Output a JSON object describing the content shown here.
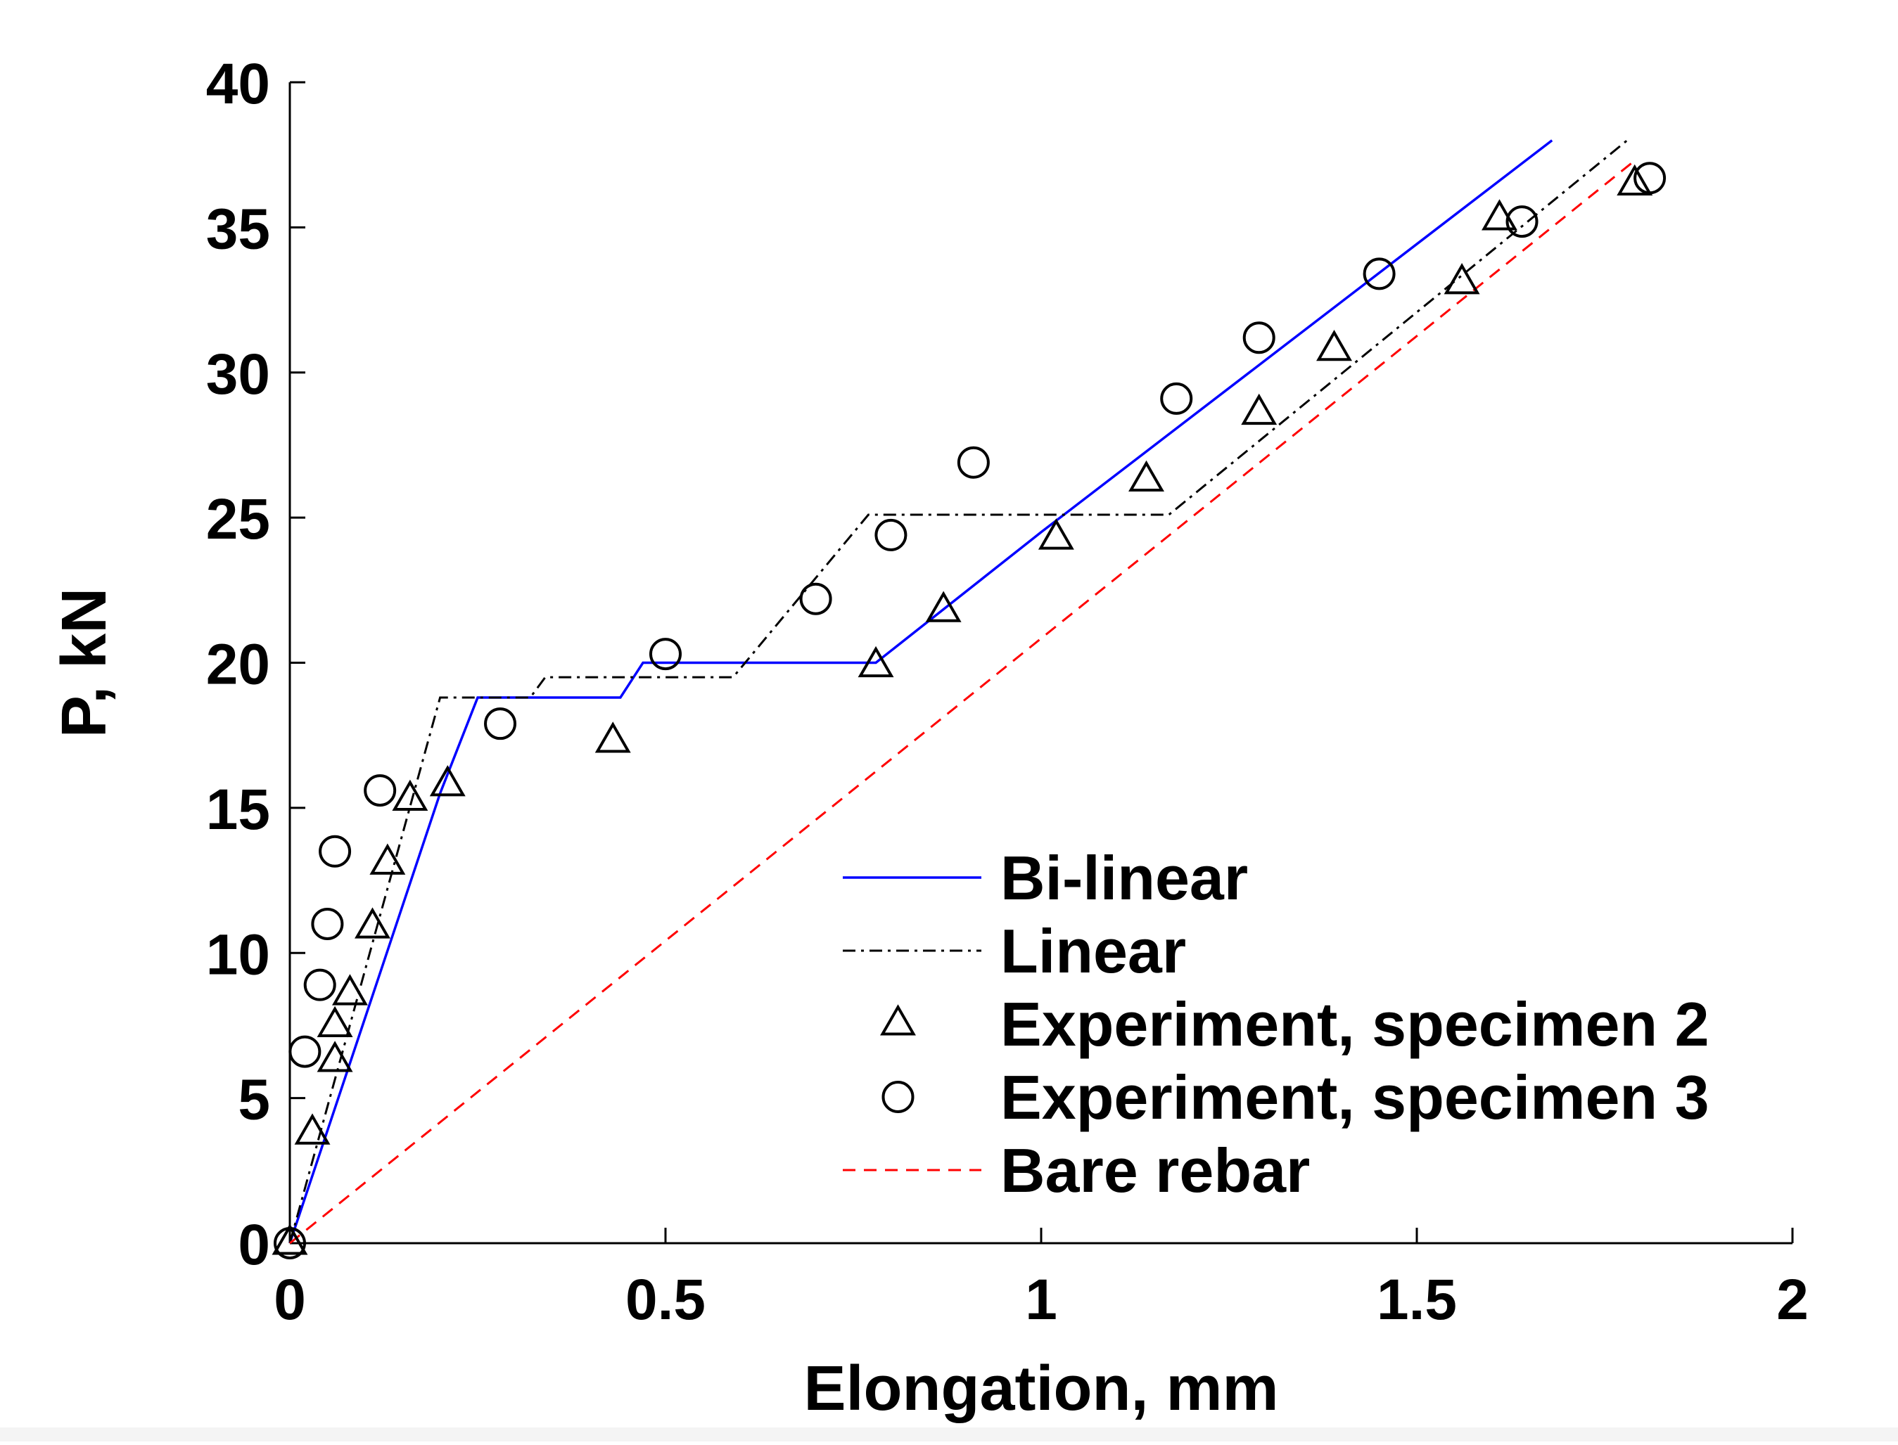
{
  "chart_data": {
    "type": "line",
    "title": "",
    "xlabel": "Elongation, mm",
    "ylabel": "P, kN",
    "xlim": [
      0,
      2
    ],
    "ylim": [
      0,
      40
    ],
    "xticks": [
      0,
      0.5,
      1,
      1.5,
      2
    ],
    "xtick_labels": [
      "0",
      "0.5",
      "1",
      "1.5",
      "2"
    ],
    "yticks": [
      0,
      5,
      10,
      15,
      20,
      25,
      30,
      35,
      40
    ],
    "ytick_labels": [
      "0",
      "5",
      "10",
      "15",
      "20",
      "25",
      "30",
      "35",
      "40"
    ],
    "grid": false,
    "legend_position": "bottom-right",
    "series": [
      {
        "name": "Bi-linear",
        "style": "solid",
        "color": "#0000ff",
        "marker": "none",
        "points": [
          [
            0,
            0
          ],
          [
            0.2,
            15.5
          ],
          [
            0.25,
            18.8
          ],
          [
            0.44,
            18.8
          ],
          [
            0.47,
            20.0
          ],
          [
            0.78,
            20.0
          ],
          [
            1.0,
            24.5
          ],
          [
            1.68,
            38.0
          ]
        ]
      },
      {
        "name": "Linear",
        "style": "dashdot",
        "color": "#000000",
        "marker": "none",
        "points": [
          [
            0,
            0
          ],
          [
            0.2,
            18.8
          ],
          [
            0.32,
            18.8
          ],
          [
            0.34,
            19.5
          ],
          [
            0.59,
            19.5
          ],
          [
            0.77,
            25.1
          ],
          [
            1.17,
            25.1
          ],
          [
            1.78,
            38.0
          ]
        ]
      },
      {
        "name": "Experiment, specimen 2",
        "style": "none",
        "color": "#000000",
        "marker": "triangle",
        "points": [
          [
            0.0,
            0.0
          ],
          [
            0.03,
            3.8
          ],
          [
            0.06,
            6.3
          ],
          [
            0.06,
            7.5
          ],
          [
            0.08,
            8.6
          ],
          [
            0.11,
            10.9
          ],
          [
            0.13,
            13.1
          ],
          [
            0.16,
            15.3
          ],
          [
            0.21,
            15.8
          ],
          [
            0.43,
            17.3
          ],
          [
            0.78,
            19.9
          ],
          [
            0.87,
            21.8
          ],
          [
            1.02,
            24.3
          ],
          [
            1.14,
            26.3
          ],
          [
            1.29,
            28.6
          ],
          [
            1.39,
            30.8
          ],
          [
            1.56,
            33.1
          ],
          [
            1.61,
            35.3
          ],
          [
            1.79,
            36.5
          ]
        ]
      },
      {
        "name": "Experiment, specimen 3",
        "style": "none",
        "color": "#000000",
        "marker": "circle",
        "points": [
          [
            0.0,
            0.0
          ],
          [
            0.02,
            6.6
          ],
          [
            0.04,
            8.9
          ],
          [
            0.05,
            11.0
          ],
          [
            0.06,
            13.5
          ],
          [
            0.12,
            15.6
          ],
          [
            0.28,
            17.9
          ],
          [
            0.5,
            20.3
          ],
          [
            0.7,
            22.2
          ],
          [
            0.8,
            24.4
          ],
          [
            0.91,
            26.9
          ],
          [
            1.18,
            29.1
          ],
          [
            1.29,
            31.2
          ],
          [
            1.45,
            33.4
          ],
          [
            1.64,
            35.2
          ],
          [
            1.81,
            36.7
          ]
        ]
      },
      {
        "name": "Bare rebar",
        "style": "dashed",
        "color": "#ff0000",
        "marker": "none",
        "points": [
          [
            0,
            0
          ],
          [
            1.79,
            37.3
          ]
        ]
      }
    ]
  }
}
